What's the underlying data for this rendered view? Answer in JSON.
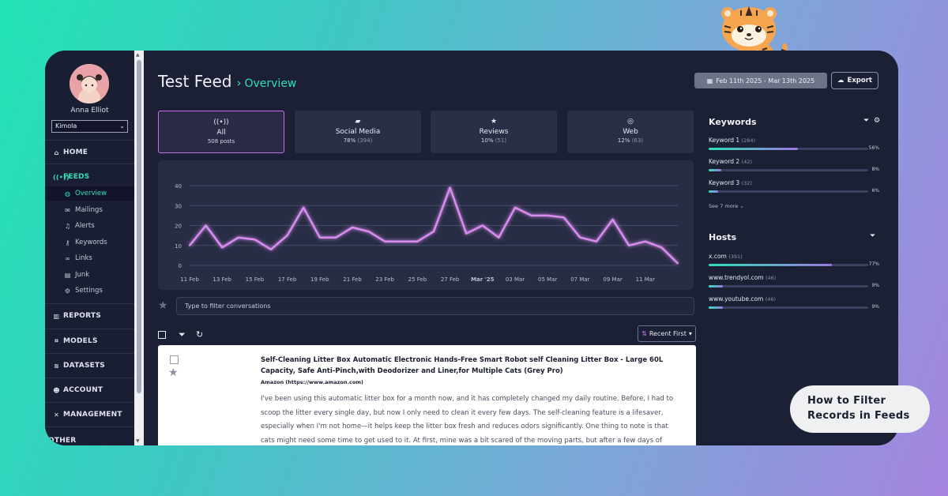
{
  "user": {
    "name": "Anna Elliot",
    "org": "Kimola"
  },
  "nav": {
    "home": "HOME",
    "feeds": "FEEDS",
    "feeds_items": [
      "Overview",
      "Mailings",
      "Alerts",
      "Keywords",
      "Links",
      "Junk",
      "Settings"
    ],
    "reports": "REPORTS",
    "models": "MODELS",
    "datasets": "DATASETS",
    "account": "ACCOUNT",
    "management": "MANAGEMENT",
    "other": "OTHER"
  },
  "header": {
    "title": "Test Feed",
    "crumb": "Overview",
    "date_range": "Feb 11th 2025 - Mar 13th 2025",
    "export_label": "Export"
  },
  "tabs": [
    {
      "label": "All",
      "stat": "508 posts",
      "count": ""
    },
    {
      "label": "Social Media",
      "stat": "78%",
      "count": "(394)"
    },
    {
      "label": "Reviews",
      "stat": "10%",
      "count": "(51)"
    },
    {
      "label": "Web",
      "stat": "12%",
      "count": "(63)"
    }
  ],
  "chart_data": {
    "type": "line",
    "x": [
      "11 Feb",
      "12 Feb",
      "13 Feb",
      "14 Feb",
      "15 Feb",
      "16 Feb",
      "17 Feb",
      "18 Feb",
      "19 Feb",
      "20 Feb",
      "21 Feb",
      "22 Feb",
      "23 Feb",
      "24 Feb",
      "25 Feb",
      "26 Feb",
      "27 Feb",
      "28 Feb",
      "Mar '25",
      "02 Mar",
      "03 Mar",
      "04 Mar",
      "05 Mar",
      "06 Mar",
      "07 Mar",
      "08 Mar",
      "09 Mar",
      "10 Mar",
      "11 Mar",
      "12 Mar",
      "13 Mar"
    ],
    "x_tick_labels": [
      "11 Feb",
      "13 Feb",
      "15 Feb",
      "17 Feb",
      "19 Feb",
      "21 Feb",
      "23 Feb",
      "25 Feb",
      "27 Feb",
      "Mar '25",
      "03 Mar",
      "05 Mar",
      "07 Mar",
      "09 Mar",
      "11 Mar"
    ],
    "series": [
      {
        "values": [
          10,
          20,
          9,
          14,
          13,
          8,
          15,
          29,
          14,
          14,
          19,
          17,
          12,
          12,
          12,
          17,
          39,
          16,
          20,
          14,
          29,
          25,
          25,
          24,
          14,
          12,
          23,
          10,
          12,
          9,
          1
        ]
      }
    ],
    "ylim": [
      0,
      40
    ],
    "y_ticks": [
      0,
      10,
      20,
      30,
      40
    ],
    "grid": true,
    "line_color": "#d98cf0"
  },
  "filter": {
    "placeholder": "Type to filter conversations"
  },
  "sort": {
    "label": "Recent First"
  },
  "post": {
    "title": "Self-Cleaning Litter Box Automatic Electronic Hands-Free Smart Robot self Cleaning Litter Box - Large 60L Capacity, Safe Anti-Pinch,with Deodorizer and Liner,for Multiple Cats (Grey Pro)",
    "source": "Amazon (https://www.amazon.com)",
    "body": "I've been using this automatic litter box for a month now, and it has completely changed my daily routine. Before, I had to scoop the litter every single day, but now I only need to clean it every few days. The self-cleaning feature is a lifesaver, especially when I'm not home—it helps keep the litter box fresh and reduces odors significantly. One thing to note is that cats might need some time to get used to it. At first, mine was a bit scared of the moving parts, but after a few days of"
  },
  "keywords": {
    "title": "Keywords",
    "items": [
      {
        "label": "Keyword 1",
        "count": "(284)",
        "pct": "56%",
        "fill": 0.56
      },
      {
        "label": "Keyword 2",
        "count": "(42)",
        "pct": "8%",
        "fill": 0.08
      },
      {
        "label": "Keyword 3",
        "count": "(32)",
        "pct": "6%",
        "fill": 0.06
      }
    ],
    "see_more": "See 7 more"
  },
  "hosts": {
    "title": "Hosts",
    "items": [
      {
        "label": "x.com",
        "count": "(391)",
        "pct": "77%",
        "fill": 0.77
      },
      {
        "label": "www.trendyol.com",
        "count": "(46)",
        "pct": "9%",
        "fill": 0.09
      },
      {
        "label": "www.youtube.com",
        "count": "(46)",
        "pct": "9%",
        "fill": 0.09
      }
    ]
  },
  "callout": {
    "line1": "How to Filter",
    "line2": "Records in Feeds"
  }
}
